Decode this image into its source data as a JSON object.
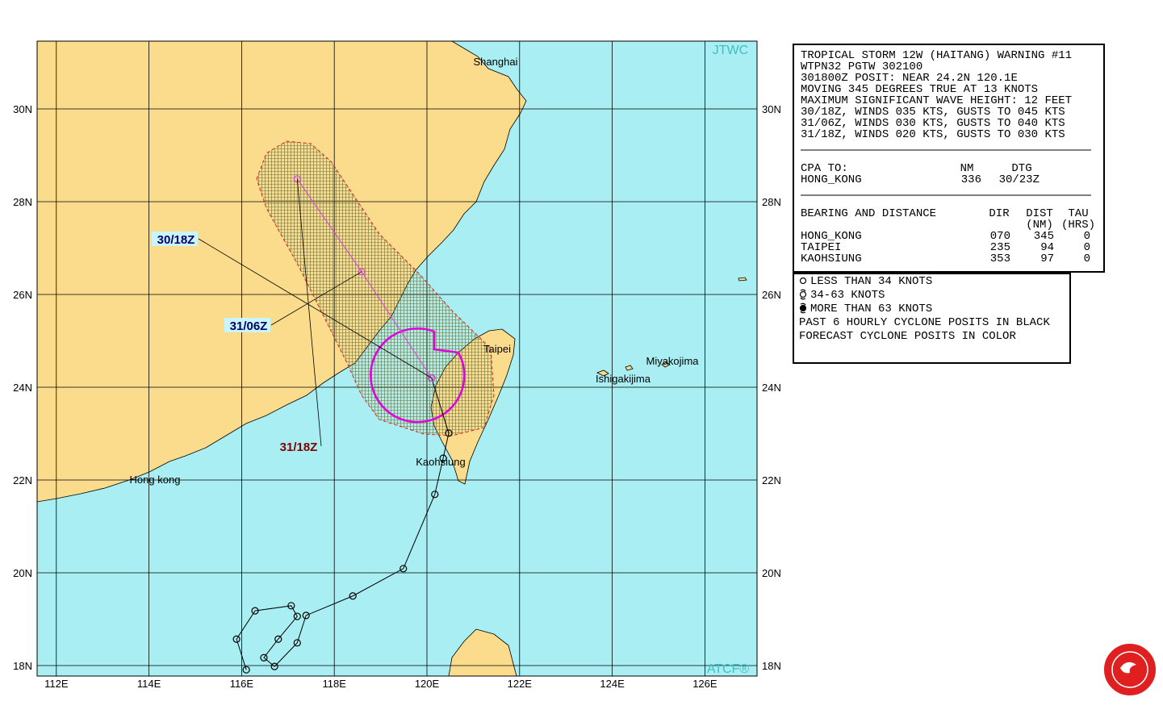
{
  "map": {
    "agency": "JTWC",
    "footer": "ATCF®",
    "lon_labels": [
      {
        "value": 112,
        "label": "112E"
      },
      {
        "value": 114,
        "label": "114E"
      },
      {
        "value": 116,
        "label": "116E"
      },
      {
        "value": 118,
        "label": "118E"
      },
      {
        "value": 120,
        "label": "120E"
      },
      {
        "value": 122,
        "label": "122E"
      },
      {
        "value": 124,
        "label": "124E"
      },
      {
        "value": 126,
        "label": "126E"
      }
    ],
    "lat_labels": [
      {
        "value": 18,
        "label": "18N"
      },
      {
        "value": 20,
        "label": "20N"
      },
      {
        "value": 22,
        "label": "22N"
      },
      {
        "value": 24,
        "label": "24N"
      },
      {
        "value": 26,
        "label": "26N"
      },
      {
        "value": 28,
        "label": "28N"
      },
      {
        "value": 30,
        "label": "30N"
      }
    ],
    "places": [
      "Shanghai",
      "Taipei",
      "Miyakojima",
      "Ishigakijima",
      "Kaohsiung",
      "Hong kong"
    ]
  },
  "storm": {
    "past_track": [
      {
        "lon": 116.1,
        "lat": 17.91
      },
      {
        "lon": 115.89,
        "lat": 18.57
      },
      {
        "lon": 116.29,
        "lat": 19.18
      },
      {
        "lon": 117.07,
        "lat": 19.29
      },
      {
        "lon": 117.2,
        "lat": 19.06
      },
      {
        "lon": 116.79,
        "lat": 18.57
      },
      {
        "lon": 116.48,
        "lat": 18.17
      },
      {
        "lon": 116.71,
        "lat": 17.98
      },
      {
        "lon": 117.2,
        "lat": 18.49
      },
      {
        "lon": 117.39,
        "lat": 19.08
      },
      {
        "lon": 118.4,
        "lat": 19.5
      },
      {
        "lon": 119.49,
        "lat": 20.09
      },
      {
        "lon": 120.17,
        "lat": 21.69
      },
      {
        "lon": 120.35,
        "lat": 22.47
      },
      {
        "lon": 120.47,
        "lat": 23.01
      },
      {
        "lon": 120.1,
        "lat": 24.2
      }
    ],
    "forecast": [
      {
        "time": "30/18Z",
        "lon": 120.1,
        "lat": 24.2
      },
      {
        "time": "31/06Z",
        "lon": 118.59,
        "lat": 26.49
      },
      {
        "time": "31/18Z",
        "lon": 117.2,
        "lat": 28.49
      }
    ]
  },
  "warning": {
    "lines": [
      "TROPICAL STORM 12W (HAITANG) WARNING #11",
      "WTPN32 PGTW 302100",
      "301800Z POSIT: NEAR 24.2N 120.1E",
      "MOVING 345 DEGREES TRUE AT 13 KNOTS",
      "MAXIMUM SIGNIFICANT WAVE HEIGHT: 12 FEET",
      "30/18Z, WINDS 035 KTS, GUSTS TO 045 KTS",
      "31/06Z, WINDS 030 KTS, GUSTS TO 040 KTS",
      "31/18Z, WINDS 020 KTS, GUSTS TO 030 KTS"
    ],
    "cpa": {
      "header": [
        "CPA TO:",
        "NM",
        "DTG"
      ],
      "rows": [
        [
          "HONG_KONG",
          "336",
          "30/23Z"
        ]
      ]
    },
    "bearing": {
      "header": [
        "BEARING AND DISTANCE",
        "DIR",
        "DIST",
        "TAU"
      ],
      "subheader": [
        "(NM)",
        "(HRS)"
      ],
      "rows": [
        [
          "HONG_KONG",
          "070",
          "345",
          "0"
        ],
        [
          "TAIPEI",
          "235",
          "94",
          "0"
        ],
        [
          "KAOHSIUNG",
          "353",
          "97",
          "0"
        ]
      ]
    }
  },
  "legend": {
    "items": [
      "LESS THAN 34 KNOTS",
      "34-63 KNOTS",
      "MORE THAN 63 KNOTS",
      "PAST 6 HOURLY CYCLONE POSITS IN BLACK",
      "FORECAST CYCLONE POSITS IN COLOR"
    ]
  }
}
